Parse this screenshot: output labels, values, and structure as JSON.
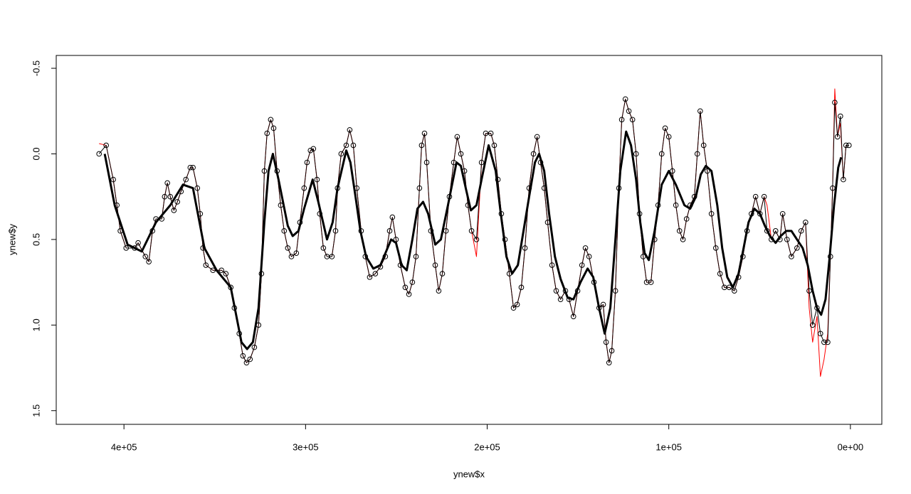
{
  "chart_data": {
    "type": "line",
    "xlabel": "ynew$x",
    "ylabel": "ynew$y",
    "xlim": [
      437300,
      -17300
    ],
    "ylim": [
      1.58,
      -0.575
    ],
    "xticks": [
      {
        "value": 400000,
        "label": "4e+05"
      },
      {
        "value": 300000,
        "label": "3e+05"
      },
      {
        "value": 200000,
        "label": "2e+05"
      },
      {
        "value": 100000,
        "label": "1e+05"
      },
      {
        "value": 0,
        "label": "0e+00"
      }
    ],
    "yticks": [
      -0.5,
      {
        "value": 0,
        "label": "0.0"
      },
      0.5,
      {
        "value": 1,
        "label": "1.0"
      },
      1.5
    ],
    "series": [
      {
        "color": "#ff0000",
        "line_width": 1,
        "x": [
          413700,
          409800,
          405900,
          403900,
          402000,
          398800,
          394100,
          392200,
          388200,
          386300,
          384300,
          382400,
          379200,
          377600,
          376100,
          374500,
          372500,
          370600,
          368600,
          365900,
          363500,
          362000,
          359600,
          358000,
          356500,
          354900,
          351000,
          346300,
          343900,
          341200,
          339200,
          336500,
          334500,
          332500,
          330600,
          328200,
          325900,
          324300,
          322700,
          321200,
          319200,
          317600,
          315700,
          313700,
          311800,
          309800,
          307800,
          305100,
          303100,
          300800,
          299200,
          297300,
          295700,
          293700,
          292200,
          290200,
          288200,
          285500,
          283500,
          282400,
          280400,
          277600,
          275700,
          273700,
          271800,
          269400,
          267100,
          264700,
          261600,
          258800,
          256100,
          253700,
          252200,
          250200,
          247800,
          245100,
          243100,
          241200,
          239200,
          237300,
          236100,
          234500,
          233300,
          231000,
          228600,
          226700,
          224700,
          222700,
          220800,
          218400,
          216500,
          214500,
          212500,
          210600,
          208600,
          205900,
          203100,
          200800,
          198000,
          196100,
          194100,
          192200,
          190200,
          187800,
          185500,
          183500,
          181200,
          179200,
          176900,
          174500,
          172500,
          170600,
          168600,
          166700,
          164300,
          162000,
          159600,
          156900,
          154900,
          152500,
          150200,
          147800,
          145900,
          143900,
          141200,
          138400,
          136100,
          134500,
          132900,
          131400,
          129400,
          127500,
          125900,
          123900,
          122000,
          120000,
          118000,
          116100,
          114100,
          112200,
          109800,
          107800,
          105900,
          103900,
          102000,
          100000,
          98000,
          96100,
          94100,
          92200,
          90200,
          88200,
          85900,
          84300,
          82700,
          80800,
          78800,
          76500,
          74100,
          71800,
          69400,
          66700,
          63900,
          61600,
          59200,
          56900,
          54500,
          52200,
          49800,
          47500,
          45900,
          43500,
          41200,
          38800,
          37300,
          34900,
          32500,
          29400,
          27100,
          24700,
          22700,
          20800,
          18400,
          16500,
          14500,
          12500,
          11000,
          9800,
          8600,
          7100,
          5500,
          3900,
          2400,
          800
        ],
        "values": [
          -0.06,
          -0.05,
          0.15,
          0.3,
          0.45,
          0.55,
          0.55,
          0.52,
          0.6,
          0.63,
          0.45,
          0.38,
          0.38,
          0.25,
          0.17,
          0.25,
          0.33,
          0.28,
          0.22,
          0.15,
          0.08,
          0.08,
          0.2,
          0.35,
          0.55,
          0.65,
          0.68,
          0.68,
          0.7,
          0.78,
          0.9,
          1.05,
          1.18,
          1.22,
          1.2,
          1.13,
          1.0,
          0.7,
          0.1,
          -0.12,
          -0.2,
          -0.15,
          0.1,
          0.3,
          0.45,
          0.55,
          0.6,
          0.58,
          0.4,
          0.2,
          0.05,
          -0.02,
          -0.03,
          0.15,
          0.35,
          0.55,
          0.6,
          0.6,
          0.45,
          0.2,
          0.0,
          -0.05,
          -0.14,
          -0.05,
          0.2,
          0.45,
          0.6,
          0.72,
          0.7,
          0.66,
          0.6,
          0.45,
          0.37,
          0.5,
          0.65,
          0.78,
          0.82,
          0.75,
          0.6,
          0.2,
          -0.05,
          -0.12,
          0.05,
          0.45,
          0.65,
          0.8,
          0.7,
          0.45,
          0.25,
          0.05,
          -0.1,
          0.0,
          0.1,
          0.3,
          0.45,
          0.6,
          0.05,
          -0.12,
          -0.12,
          -0.05,
          0.15,
          0.35,
          0.5,
          0.7,
          0.9,
          0.88,
          0.78,
          0.55,
          0.2,
          0.0,
          -0.1,
          0.05,
          0.2,
          0.4,
          0.65,
          0.8,
          0.85,
          0.8,
          0.85,
          0.95,
          0.8,
          0.65,
          0.55,
          0.6,
          0.75,
          0.9,
          0.88,
          1.1,
          1.22,
          1.15,
          0.8,
          0.2,
          -0.2,
          -0.32,
          -0.25,
          -0.2,
          0.0,
          0.35,
          0.6,
          0.75,
          0.75,
          0.5,
          0.3,
          0.0,
          -0.15,
          -0.1,
          0.1,
          0.3,
          0.45,
          0.5,
          0.38,
          0.3,
          0.25,
          0.0,
          -0.25,
          -0.05,
          0.1,
          0.35,
          0.55,
          0.7,
          0.78,
          0.78,
          0.8,
          0.72,
          0.6,
          0.45,
          0.35,
          0.25,
          0.35,
          0.25,
          0.3,
          0.5,
          0.45,
          0.5,
          0.35,
          0.5,
          0.6,
          0.55,
          0.45,
          0.4,
          0.9,
          1.1,
          0.95,
          1.3,
          1.2,
          1.05,
          0.6,
          0.2,
          -0.38,
          -0.1,
          -0.18,
          0.15,
          -0.05,
          -0.05
        ]
      },
      {
        "color": "#000000",
        "line_width": 1,
        "marker": "circle",
        "x": [
          413700,
          409800,
          405900,
          403900,
          402000,
          398800,
          394100,
          392200,
          388200,
          386300,
          384300,
          382400,
          379200,
          377600,
          376100,
          374500,
          372500,
          370600,
          368600,
          365900,
          363500,
          362000,
          359600,
          358000,
          356500,
          354900,
          351000,
          346300,
          343900,
          341200,
          339200,
          336500,
          334500,
          332500,
          330600,
          328200,
          325900,
          324300,
          322700,
          321200,
          319200,
          317600,
          315700,
          313700,
          311800,
          309800,
          307800,
          305100,
          303100,
          300800,
          299200,
          297300,
          295700,
          293700,
          292200,
          290200,
          288200,
          285500,
          283500,
          282400,
          280400,
          277600,
          275700,
          273700,
          271800,
          269400,
          267100,
          264700,
          261600,
          258800,
          256100,
          253700,
          252200,
          250200,
          247800,
          245100,
          243100,
          241200,
          239200,
          237300,
          236100,
          234500,
          233300,
          231000,
          228600,
          226700,
          224700,
          222700,
          220800,
          218400,
          216500,
          214500,
          212500,
          210600,
          208600,
          205900,
          203100,
          200800,
          198000,
          196100,
          194100,
          192200,
          190200,
          187800,
          185500,
          183500,
          181200,
          179200,
          176900,
          174500,
          172500,
          170600,
          168600,
          166700,
          164300,
          162000,
          159600,
          156900,
          154900,
          152500,
          150200,
          147800,
          145900,
          143900,
          141200,
          138400,
          136100,
          134500,
          132900,
          131400,
          129400,
          127500,
          125900,
          123900,
          122000,
          120000,
          118000,
          116100,
          114100,
          112200,
          109800,
          107800,
          105900,
          103900,
          102000,
          100000,
          98000,
          96100,
          94100,
          92200,
          90200,
          88200,
          85900,
          84300,
          82700,
          80800,
          78800,
          76500,
          74100,
          71800,
          69400,
          66700,
          63900,
          61600,
          59200,
          56900,
          54500,
          52200,
          49800,
          47500,
          45900,
          43500,
          41200,
          38800,
          37300,
          34900,
          32500,
          29400,
          27100,
          24700,
          22700,
          20800,
          18400,
          16500,
          14500,
          12500,
          11000,
          9800,
          8600,
          7100,
          5500,
          3900,
          2400,
          800
        ],
        "values": [
          0.0,
          -0.05,
          0.15,
          0.3,
          0.45,
          0.55,
          0.55,
          0.52,
          0.6,
          0.63,
          0.45,
          0.38,
          0.38,
          0.25,
          0.17,
          0.25,
          0.33,
          0.28,
          0.22,
          0.15,
          0.08,
          0.08,
          0.2,
          0.35,
          0.55,
          0.65,
          0.68,
          0.68,
          0.7,
          0.78,
          0.9,
          1.05,
          1.18,
          1.22,
          1.2,
          1.13,
          1.0,
          0.7,
          0.1,
          -0.12,
          -0.2,
          -0.15,
          0.1,
          0.3,
          0.45,
          0.55,
          0.6,
          0.58,
          0.4,
          0.2,
          0.05,
          -0.02,
          -0.03,
          0.15,
          0.35,
          0.55,
          0.6,
          0.6,
          0.45,
          0.2,
          0.0,
          -0.05,
          -0.14,
          -0.05,
          0.2,
          0.45,
          0.6,
          0.72,
          0.7,
          0.66,
          0.6,
          0.45,
          0.37,
          0.5,
          0.65,
          0.78,
          0.82,
          0.75,
          0.6,
          0.2,
          -0.05,
          -0.12,
          0.05,
          0.45,
          0.65,
          0.8,
          0.7,
          0.45,
          0.25,
          0.05,
          -0.1,
          0.0,
          0.1,
          0.3,
          0.45,
          0.5,
          0.05,
          -0.12,
          -0.12,
          -0.05,
          0.15,
          0.35,
          0.5,
          0.7,
          0.9,
          0.88,
          0.78,
          0.55,
          0.2,
          0.0,
          -0.1,
          0.05,
          0.2,
          0.4,
          0.65,
          0.8,
          0.85,
          0.8,
          0.85,
          0.95,
          0.8,
          0.65,
          0.55,
          0.6,
          0.75,
          0.9,
          0.88,
          1.1,
          1.22,
          1.15,
          0.8,
          0.2,
          -0.2,
          -0.32,
          -0.25,
          -0.2,
          0.0,
          0.35,
          0.6,
          0.75,
          0.75,
          0.5,
          0.3,
          0.0,
          -0.15,
          -0.1,
          0.1,
          0.3,
          0.45,
          0.5,
          0.38,
          0.3,
          0.25,
          0.0,
          -0.25,
          -0.05,
          0.1,
          0.35,
          0.55,
          0.7,
          0.78,
          0.78,
          0.8,
          0.72,
          0.6,
          0.45,
          0.35,
          0.25,
          0.35,
          0.25,
          0.45,
          0.5,
          0.45,
          0.5,
          0.35,
          0.5,
          0.6,
          0.55,
          0.45,
          0.4,
          0.8,
          1.0,
          0.9,
          1.05,
          1.1,
          1.1,
          0.6,
          0.2,
          -0.3,
          -0.1,
          -0.22,
          0.15,
          -0.05,
          -0.05
        ]
      },
      {
        "color": "#000000",
        "line_width": 3,
        "x": [
          410600,
          405100,
          398000,
          390200,
          382400,
          374500,
          367500,
          362000,
          355700,
          349000,
          341200,
          335300,
          332200,
          329000,
          325900,
          322700,
          320400,
          318000,
          314900,
          309800,
          307100,
          303900,
          300800,
          296100,
          293000,
          288200,
          285100,
          282400,
          277600,
          275300,
          272500,
          269800,
          266700,
          262700,
          258800,
          252900,
          250200,
          247100,
          244300,
          241200,
          238400,
          235300,
          232500,
          228600,
          225500,
          221600,
          216900,
          214500,
          211800,
          209000,
          205900,
          203100,
          199200,
          195300,
          192500,
          189400,
          186300,
          183100,
          180000,
          176900,
          173700,
          171400,
          168600,
          165900,
          162700,
          159600,
          155700,
          152500,
          148600,
          144700,
          141600,
          138400,
          135300,
          132200,
          129400,
          126700,
          123500,
          120800,
          118000,
          115700,
          113300,
          111000,
          107800,
          103900,
          100000,
          96100,
          91400,
          88200,
          85100,
          82400,
          79600,
          76500,
          73300,
          70600,
          67800,
          64700,
          61600,
          58800,
          56100,
          52900,
          49800,
          47100,
          44300,
          41200,
          38400,
          35300,
          32500,
          29400,
          26300,
          23500,
          20800,
          18400,
          16100,
          13700,
          11400,
          9000,
          6700,
          5100
        ],
        "values": [
          0.0,
          0.3,
          0.53,
          0.57,
          0.4,
          0.3,
          0.18,
          0.2,
          0.55,
          0.68,
          0.78,
          1.1,
          1.14,
          1.1,
          0.9,
          0.4,
          0.1,
          0.0,
          0.15,
          0.42,
          0.48,
          0.45,
          0.32,
          0.15,
          0.28,
          0.5,
          0.4,
          0.2,
          -0.02,
          0.05,
          0.25,
          0.45,
          0.6,
          0.67,
          0.65,
          0.5,
          0.52,
          0.65,
          0.68,
          0.5,
          0.32,
          0.28,
          0.35,
          0.53,
          0.5,
          0.3,
          0.05,
          0.07,
          0.2,
          0.33,
          0.3,
          0.15,
          -0.05,
          0.1,
          0.35,
          0.6,
          0.7,
          0.65,
          0.45,
          0.25,
          0.05,
          0.0,
          0.1,
          0.35,
          0.6,
          0.73,
          0.84,
          0.85,
          0.75,
          0.67,
          0.72,
          0.9,
          1.05,
          0.9,
          0.5,
          0.1,
          -0.13,
          -0.05,
          0.15,
          0.4,
          0.58,
          0.62,
          0.45,
          0.18,
          0.1,
          0.18,
          0.3,
          0.32,
          0.25,
          0.12,
          0.07,
          0.1,
          0.3,
          0.55,
          0.72,
          0.78,
          0.7,
          0.55,
          0.4,
          0.32,
          0.35,
          0.42,
          0.48,
          0.52,
          0.48,
          0.45,
          0.45,
          0.5,
          0.55,
          0.65,
          0.8,
          0.9,
          0.94,
          0.85,
          0.6,
          0.3,
          0.08,
          0.02
        ]
      }
    ]
  }
}
